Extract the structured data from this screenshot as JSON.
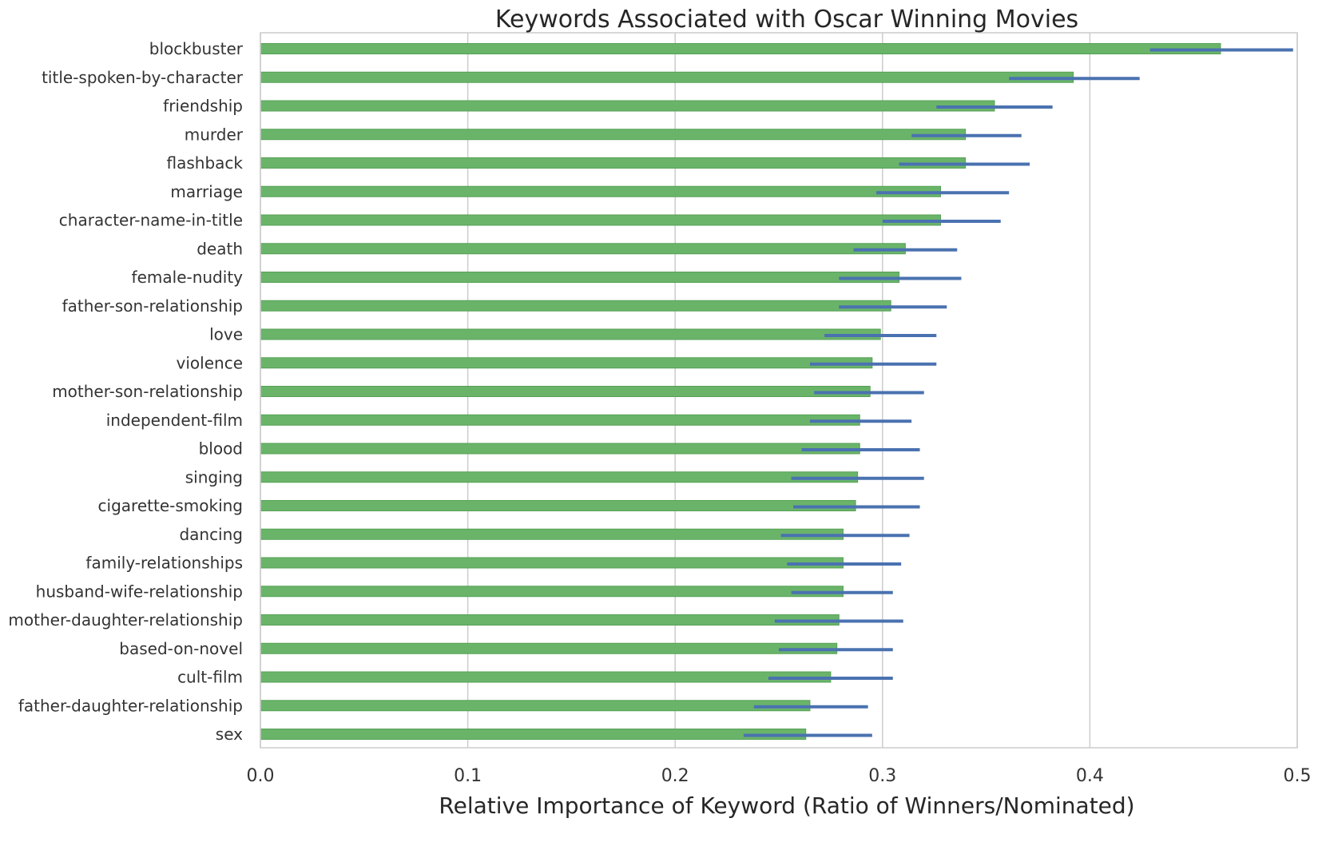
{
  "chart_data": {
    "type": "bar",
    "orientation": "horizontal",
    "title": "Keywords Associated with Oscar Winning Movies",
    "xlabel": "Relative Importance of Keyword (Ratio of Winners/Nominated)",
    "ylabel": "",
    "xlim": [
      0,
      0.5
    ],
    "xticks": [
      "0.0",
      "0.1",
      "0.2",
      "0.3",
      "0.4",
      "0.5"
    ],
    "grid": "vertical",
    "bar_color": "#6ab46a",
    "bar_edge_color": "#55a155",
    "error_color": "#4a72b0",
    "categories": [
      "blockbuster",
      "title-spoken-by-character",
      "friendship",
      "murder",
      "flashback",
      "marriage",
      "character-name-in-title",
      "death",
      "female-nudity",
      "father-son-relationship",
      "love",
      "violence",
      "mother-son-relationship",
      "independent-film",
      "blood",
      "singing",
      "cigarette-smoking",
      "dancing",
      "family-relationships",
      "husband-wife-relationship",
      "mother-daughter-relationship",
      "based-on-novel",
      "cult-film",
      "father-daughter-relationship",
      "sex"
    ],
    "values": [
      0.463,
      0.392,
      0.354,
      0.34,
      0.34,
      0.328,
      0.328,
      0.311,
      0.308,
      0.304,
      0.299,
      0.295,
      0.294,
      0.289,
      0.289,
      0.288,
      0.287,
      0.281,
      0.281,
      0.281,
      0.279,
      0.278,
      0.275,
      0.265,
      0.263
    ],
    "error_low": [
      0.429,
      0.361,
      0.326,
      0.314,
      0.308,
      0.297,
      0.3,
      0.286,
      0.279,
      0.279,
      0.272,
      0.265,
      0.267,
      0.265,
      0.261,
      0.256,
      0.257,
      0.251,
      0.254,
      0.256,
      0.248,
      0.25,
      0.245,
      0.238,
      0.233
    ],
    "error_high": [
      0.498,
      0.424,
      0.382,
      0.367,
      0.371,
      0.361,
      0.357,
      0.336,
      0.338,
      0.331,
      0.326,
      0.326,
      0.32,
      0.314,
      0.318,
      0.32,
      0.318,
      0.313,
      0.309,
      0.305,
      0.31,
      0.305,
      0.305,
      0.293,
      0.295
    ]
  }
}
